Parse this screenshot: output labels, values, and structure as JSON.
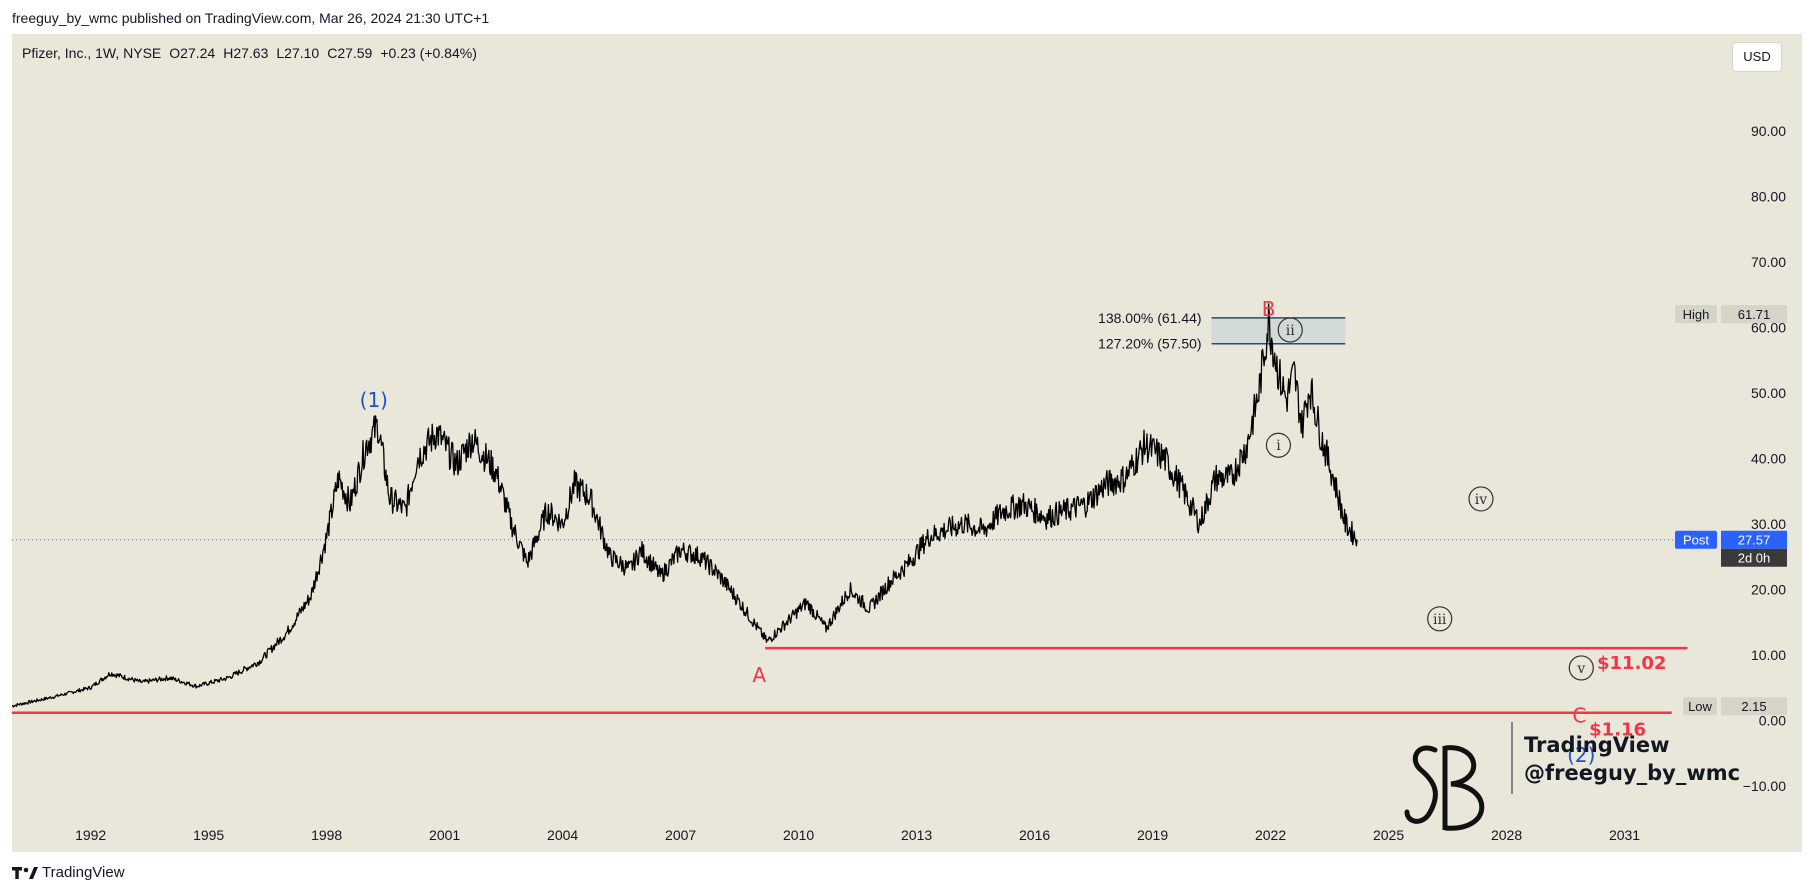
{
  "header": {
    "published_line": "freeguy_by_wmc published on TradingView.com, Mar 26, 2024 21:30 UTC+1"
  },
  "symbol_info": {
    "name": "Pfizer, Inc., 1W, NYSE",
    "open": "O27.24",
    "high": "H27.63",
    "low": "L27.10",
    "close": "C27.59",
    "change": "+0.23 (+0.84%)"
  },
  "currency_button": "USD",
  "footer": {
    "brand": "TradingView",
    "logo_icon": "tradingview-logo-icon"
  },
  "watermark": {
    "line1": "TradingView",
    "line2": "@freeguy_by_wmc"
  },
  "colors": {
    "background": "#e9e6da",
    "price_line": "#000000",
    "wave_red": "#f23645",
    "wave_blue": "#1e50c8",
    "fib_line": "#1c4e80",
    "fib_fill": "#cfd6d6",
    "post_badge": "#2962ff"
  },
  "chart_data": {
    "type": "line",
    "series_name": "",
    "x_ticks": [
      "1992",
      "1995",
      "1998",
      "2001",
      "2004",
      "2007",
      "2010",
      "2013",
      "2016",
      "2019",
      "2022",
      "2025",
      "2028",
      "2031"
    ],
    "y_ticks": [
      "90.00",
      "80.00",
      "70.00",
      "60.00",
      "50.00",
      "40.00",
      "30.00",
      "20.00",
      "10.00",
      "0.00",
      "−10.00"
    ],
    "ylim": [
      -14.3,
      100.2
    ],
    "xlim": [
      1990.0,
      2033.3
    ],
    "grid": false,
    "price_path": [
      [
        1990.0,
        2.2
      ],
      [
        1991.0,
        3.5
      ],
      [
        1992.0,
        5.0
      ],
      [
        1992.5,
        7.2
      ],
      [
        1993.3,
        5.8
      ],
      [
        1994.0,
        6.5
      ],
      [
        1994.7,
        5.2
      ],
      [
        1995.5,
        6.5
      ],
      [
        1996.3,
        9.0
      ],
      [
        1997.0,
        13.5
      ],
      [
        1997.6,
        19.0
      ],
      [
        1998.0,
        28.0
      ],
      [
        1998.3,
        37.0
      ],
      [
        1998.6,
        33.0
      ],
      [
        1999.0,
        42.0
      ],
      [
        1999.3,
        45.0
      ],
      [
        1999.6,
        34.0
      ],
      [
        2000.0,
        32.0
      ],
      [
        2000.3,
        40.0
      ],
      [
        2000.8,
        44.0
      ],
      [
        2001.3,
        39.0
      ],
      [
        2001.7,
        43.0
      ],
      [
        2002.3,
        38.0
      ],
      [
        2002.7,
        30.0
      ],
      [
        2003.1,
        24.0
      ],
      [
        2003.6,
        32.0
      ],
      [
        2004.0,
        30.0
      ],
      [
        2004.3,
        36.0
      ],
      [
        2004.7,
        34.0
      ],
      [
        2005.2,
        25.0
      ],
      [
        2005.7,
        23.0
      ],
      [
        2006.0,
        26.0
      ],
      [
        2006.5,
        22.0
      ],
      [
        2007.0,
        26.0
      ],
      [
        2007.5,
        25.0
      ],
      [
        2008.0,
        22.0
      ],
      [
        2008.5,
        18.0
      ],
      [
        2009.2,
        12.0
      ],
      [
        2009.7,
        15.0
      ],
      [
        2010.2,
        18.0
      ],
      [
        2010.7,
        14.0
      ],
      [
        2011.3,
        20.0
      ],
      [
        2011.8,
        17.0
      ],
      [
        2012.3,
        21.0
      ],
      [
        2012.8,
        24.0
      ],
      [
        2013.3,
        28.0
      ],
      [
        2013.7,
        29.0
      ],
      [
        2014.2,
        30.0
      ],
      [
        2014.7,
        29.0
      ],
      [
        2015.2,
        32.0
      ],
      [
        2015.7,
        33.0
      ],
      [
        2016.3,
        31.0
      ],
      [
        2016.8,
        32.0
      ],
      [
        2017.3,
        33.0
      ],
      [
        2017.8,
        36.0
      ],
      [
        2018.3,
        37.0
      ],
      [
        2018.8,
        42.0
      ],
      [
        2019.3,
        40.0
      ],
      [
        2019.7,
        36.0
      ],
      [
        2020.2,
        30.0
      ],
      [
        2020.6,
        37.0
      ],
      [
        2021.0,
        37.0
      ],
      [
        2021.4,
        42.0
      ],
      [
        2021.7,
        50.0
      ],
      [
        2021.95,
        61.0
      ],
      [
        2022.2,
        53.0
      ],
      [
        2022.4,
        49.0
      ],
      [
        2022.6,
        53.0
      ],
      [
        2022.8,
        45.0
      ],
      [
        2023.0,
        51.0
      ],
      [
        2023.3,
        43.0
      ],
      [
        2023.6,
        37.0
      ],
      [
        2023.9,
        30.0
      ],
      [
        2024.2,
        27.6
      ]
    ],
    "post_price": 27.57,
    "countdown": "2d 0h",
    "post_label": "Post",
    "high": {
      "label": "High",
      "value": 61.71
    },
    "low": {
      "label": "Low",
      "value": 2.15
    },
    "fib_levels": [
      {
        "label": "138.00% (61.44)",
        "value": 61.44
      },
      {
        "label": "127.20% (57.50)",
        "value": 57.5
      }
    ],
    "fib_box_x": [
      2020.5,
      2023.9
    ],
    "support_lines": [
      {
        "label": "$11.02",
        "value": 11.02,
        "x_start": 2009.15,
        "x_end": 2032.6,
        "label_x": 2030.3
      },
      {
        "label": "$1.16",
        "value": 1.16,
        "x_start": 1990.0,
        "x_end": 2032.2,
        "label_x": 2030.1
      }
    ],
    "wave_labels": [
      {
        "text": "(1)",
        "x": 1999.2,
        "y": 48.9,
        "color": "blue",
        "circled": false
      },
      {
        "text": "B",
        "x": 2021.95,
        "y": 62.8,
        "color": "red",
        "circled": false
      },
      {
        "text": "A",
        "x": 2009.0,
        "y": 6.9,
        "color": "red",
        "circled": false
      },
      {
        "text": "C",
        "x": 2029.85,
        "y": 0.7,
        "color": "red",
        "circled": false
      },
      {
        "text": "(2)",
        "x": 2029.9,
        "y": -5.3,
        "color": "blue",
        "circled": false
      },
      {
        "text": "i",
        "x": 2022.2,
        "y": 42.0,
        "color": "dark",
        "circled": true
      },
      {
        "text": "ii",
        "x": 2022.5,
        "y": 59.6,
        "color": "dark",
        "circled": true
      },
      {
        "text": "iii",
        "x": 2026.3,
        "y": 15.5,
        "color": "dark",
        "circled": true
      },
      {
        "text": "iv",
        "x": 2027.35,
        "y": 33.8,
        "color": "dark",
        "circled": true
      },
      {
        "text": "v",
        "x": 2029.9,
        "y": 8.0,
        "color": "dark",
        "circled": true
      }
    ]
  }
}
